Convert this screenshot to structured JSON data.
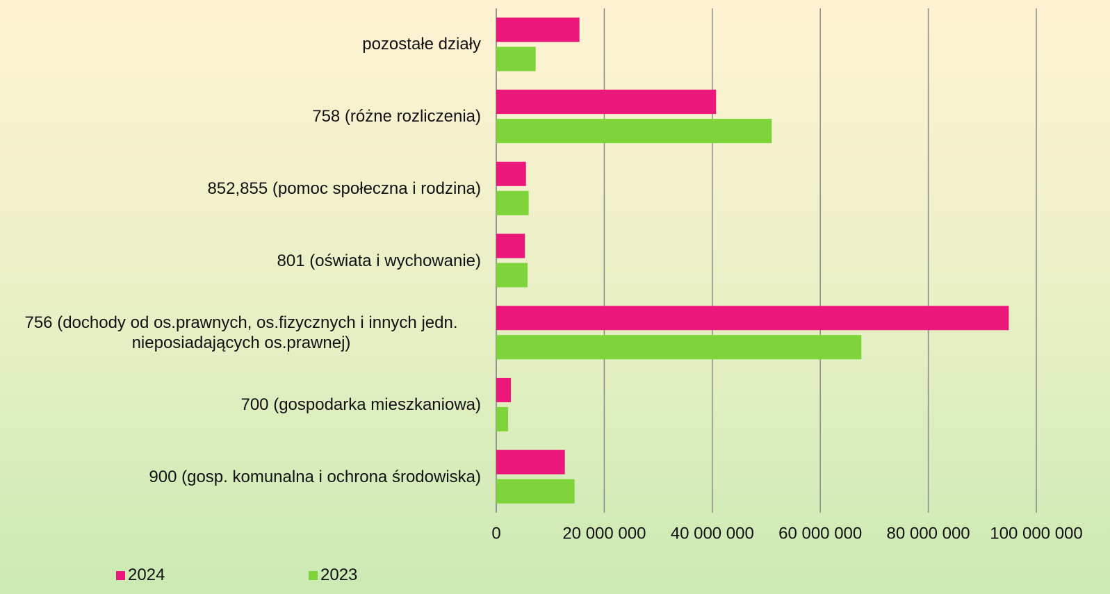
{
  "chart_data": {
    "type": "barh",
    "categories": [
      "pozostałe działy",
      "758 (różne rozliczenia)",
      "852,855 (pomoc społeczna i rodzina)",
      "801 (oświata i wychowanie)",
      "756 (dochody od os.prawnych, os.fizycznych i innych jedn. nieposiadających os.prawnej)",
      "700 (gospodarka mieszkaniowa)",
      "900 (gosp. komunalna i ochrona środowiska)"
    ],
    "series": [
      {
        "name": "2024",
        "color": "#ec177a",
        "values": [
          15400000,
          40700000,
          5500000,
          5300000,
          94900000,
          2700000,
          12700000
        ]
      },
      {
        "name": "2023",
        "color": "#7fd33b",
        "values": [
          7300000,
          51000000,
          6000000,
          5800000,
          67600000,
          2200000,
          14500000
        ]
      }
    ],
    "xlim": [
      0,
      100000000
    ],
    "xticks": [
      0,
      {
        "value": 20000000,
        "label": "20 000 000"
      },
      {
        "value": 40000000,
        "label": "40 000 000"
      },
      {
        "value": 60000000,
        "label": "60 000 000"
      },
      {
        "value": 80000000,
        "label": "80 000 000"
      },
      {
        "value": 100000000,
        "label": "100 000 000"
      }
    ],
    "grid": true,
    "legend": "bottom-left"
  }
}
